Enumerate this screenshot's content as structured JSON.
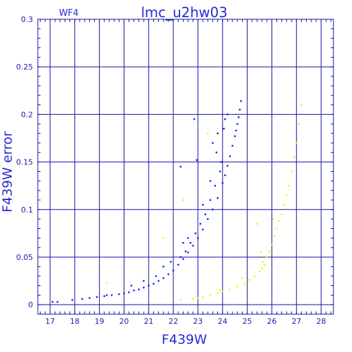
{
  "chart_data": {
    "type": "scatter",
    "title": "lmc_u2hw03",
    "corner_label": "WF4",
    "xlabel": "F439W",
    "ylabel": "F439W error",
    "xlim": [
      16.5,
      28.5
    ],
    "ylim": [
      -0.01,
      0.3
    ],
    "xticks": [
      17,
      18,
      19,
      20,
      21,
      22,
      23,
      24,
      25,
      26,
      27,
      28
    ],
    "xtick_labels": [
      "17",
      "18",
      "19",
      "20",
      "21",
      "22",
      "23",
      "24",
      "25",
      "26",
      "27",
      "28"
    ],
    "yticks": [
      0,
      0.05,
      0.1,
      0.15,
      0.2,
      0.25,
      0.3
    ],
    "ytick_labels": [
      "0",
      "0.05",
      "0.1",
      "0.15",
      "0.2",
      "0.25",
      "0.3"
    ],
    "grid": true,
    "colors": {
      "frame": "#1010a0",
      "grid": "#1010a0",
      "blue_series": "#1a1aff",
      "yellow_series": "#f2f200",
      "text": "#2a2ad6"
    },
    "series": [
      {
        "color": "#1a1aff",
        "x": [
          17.1,
          17.3,
          17.9,
          18.3,
          18.6,
          18.9,
          19.2,
          19.5,
          19.8,
          20.0,
          20.2,
          20.4,
          20.6,
          20.8,
          21.0,
          21.2,
          21.4,
          21.6,
          21.8,
          22.0,
          22.2,
          22.4,
          22.6,
          22.8,
          23.0,
          23.2,
          23.4,
          23.6,
          23.8,
          24.0,
          24.1,
          24.2,
          24.3,
          24.4,
          24.5,
          24.55,
          24.6,
          24.65,
          24.7,
          24.75,
          19.3,
          20.3,
          20.8,
          21.3,
          21.9,
          22.3,
          22.5,
          22.7,
          22.9,
          23.1,
          23.3,
          23.5,
          23.7,
          23.9,
          22.3,
          22.85,
          22.95,
          23.6,
          23.8,
          23.95,
          24.05,
          24.1,
          24.2,
          23.75,
          23.5,
          23.2,
          22.6,
          22.4,
          21.6
        ],
        "y": [
          0.003,
          0.003,
          0.005,
          0.006,
          0.007,
          0.008,
          0.009,
          0.01,
          0.011,
          0.012,
          0.013,
          0.015,
          0.016,
          0.018,
          0.02,
          0.022,
          0.025,
          0.028,
          0.032,
          0.036,
          0.042,
          0.048,
          0.055,
          0.062,
          0.07,
          0.079,
          0.09,
          0.1,
          0.112,
          0.128,
          0.136,
          0.146,
          0.156,
          0.167,
          0.177,
          0.183,
          0.19,
          0.197,
          0.205,
          0.214,
          0.01,
          0.02,
          0.025,
          0.03,
          0.045,
          0.05,
          0.056,
          0.065,
          0.075,
          0.085,
          0.095,
          0.11,
          0.125,
          0.14,
          0.145,
          0.195,
          0.152,
          0.17,
          0.18,
          0.15,
          0.185,
          0.195,
          0.2,
          0.16,
          0.13,
          0.105,
          0.07,
          0.065,
          0.04
        ]
      },
      {
        "color": "#f2f200",
        "x": [
          19.3,
          21.6,
          22.3,
          22.8,
          23.0,
          23.2,
          23.5,
          23.8,
          24.0,
          24.3,
          24.6,
          24.9,
          25.1,
          25.3,
          25.5,
          25.6,
          25.7,
          25.8,
          25.9,
          26.0,
          26.1,
          26.2,
          26.3,
          26.4,
          26.5,
          26.6,
          26.7,
          26.8,
          26.9,
          27.0,
          27.1,
          27.2,
          23.4,
          22.4,
          25.4,
          26.05,
          25.55,
          24.8,
          23.9,
          25.65
        ],
        "y": [
          0.023,
          0.07,
          0.005,
          0.006,
          0.007,
          0.008,
          0.01,
          0.012,
          0.014,
          0.016,
          0.019,
          0.022,
          0.026,
          0.03,
          0.035,
          0.038,
          0.042,
          0.05,
          0.056,
          0.063,
          0.072,
          0.08,
          0.088,
          0.095,
          0.105,
          0.115,
          0.125,
          0.14,
          0.155,
          0.17,
          0.19,
          0.21,
          0.18,
          0.11,
          0.085,
          0.09,
          0.055,
          0.028,
          0.015,
          0.045
        ]
      }
    ]
  }
}
